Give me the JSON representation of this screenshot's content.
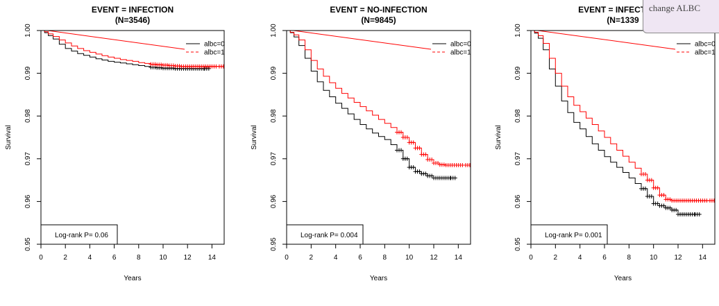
{
  "tooltip": {
    "text": "change ALBC"
  },
  "chart_data": [
    {
      "type": "line",
      "title": "EVENT = INFECTION",
      "subtitle": "(N=3546)",
      "xlabel": "Years",
      "ylabel": "Survival",
      "xlim": [
        0,
        15
      ],
      "ylim": [
        0.95,
        1.0
      ],
      "xticks": [
        0,
        2,
        4,
        6,
        8,
        10,
        12,
        14
      ],
      "yticks": [
        0.95,
        0.96,
        0.97,
        0.98,
        0.99,
        1.0
      ],
      "ytick_labels": [
        "0.95",
        "0.96",
        "0.97",
        "0.98",
        "0.99",
        "1.00"
      ],
      "grid": false,
      "legend": "top-right",
      "annotation": "Log-rank P= 0.06",
      "series": [
        {
          "name": "albc=0",
          "color": "#000000",
          "x": [
            0,
            0.3,
            0.6,
            1.0,
            1.5,
            2.0,
            2.5,
            3.0,
            3.5,
            4.0,
            4.5,
            5.0,
            5.5,
            6.0,
            6.5,
            7.0,
            7.5,
            8.0,
            8.5,
            9.0,
            9.5,
            10.0,
            10.5,
            11.0,
            11.5,
            12.0,
            12.5,
            13.0,
            13.4
          ],
          "y": [
            1.0,
            0.9995,
            0.9988,
            0.998,
            0.9968,
            0.9958,
            0.9952,
            0.9946,
            0.9942,
            0.9938,
            0.9934,
            0.9931,
            0.9928,
            0.9926,
            0.9924,
            0.9922,
            0.992,
            0.9918,
            0.9916,
            0.9914,
            0.9913,
            0.9912,
            0.9912,
            0.9911,
            0.9911,
            0.9911,
            0.9911,
            0.9911,
            0.9911
          ]
        },
        {
          "name": "albc=1",
          "color": "#ff0000",
          "x": [
            0,
            0.3,
            0.6,
            1.0,
            1.5,
            2.0,
            2.5,
            3.0,
            3.5,
            4.0,
            4.5,
            5.0,
            5.5,
            6.0,
            6.5,
            7.0,
            7.5,
            8.0,
            8.5,
            9.0,
            9.5,
            10.0,
            10.5,
            11.0,
            11.5,
            12.0,
            12.5,
            13.0,
            13.5,
            14.0,
            14.6
          ],
          "y": [
            1.0,
            0.9997,
            0.9992,
            0.9986,
            0.9978,
            0.9971,
            0.9964,
            0.9958,
            0.9953,
            0.9949,
            0.9945,
            0.9941,
            0.9938,
            0.9935,
            0.9932,
            0.993,
            0.9928,
            0.9925,
            0.9923,
            0.9921,
            0.992,
            0.9919,
            0.9918,
            0.9917,
            0.9916,
            0.9916,
            0.9916,
            0.9916,
            0.9916,
            0.9916,
            0.9916
          ]
        }
      ]
    },
    {
      "type": "line",
      "title": "EVENT = NO-INFECTION",
      "subtitle": "(N=9845)",
      "xlabel": "Years",
      "ylabel": "Survival",
      "xlim": [
        0,
        15
      ],
      "ylim": [
        0.95,
        1.0
      ],
      "xticks": [
        0,
        2,
        4,
        6,
        8,
        10,
        12,
        14
      ],
      "yticks": [
        0.95,
        0.96,
        0.97,
        0.98,
        0.99,
        1.0
      ],
      "ytick_labels": [
        "0.95",
        "0.96",
        "0.97",
        "0.98",
        "0.99",
        "1.00"
      ],
      "grid": false,
      "legend": "top-right",
      "annotation": "Log-rank P= 0.004",
      "series": [
        {
          "name": "albc=0",
          "color": "#000000",
          "x": [
            0,
            0.3,
            0.6,
            1.0,
            1.5,
            2.0,
            2.5,
            3.0,
            3.5,
            4.0,
            4.5,
            5.0,
            5.5,
            6.0,
            6.5,
            7.0,
            7.5,
            8.0,
            8.5,
            9.0,
            9.5,
            10.0,
            10.5,
            11.0,
            11.5,
            12.0,
            12.5,
            13.0,
            13.4
          ],
          "y": [
            1.0,
            0.9995,
            0.9985,
            0.9965,
            0.9935,
            0.9905,
            0.988,
            0.986,
            0.9845,
            0.983,
            0.9818,
            0.9805,
            0.9792,
            0.978,
            0.977,
            0.976,
            0.9752,
            0.9745,
            0.9733,
            0.972,
            0.97,
            0.968,
            0.967,
            0.9665,
            0.966,
            0.9655,
            0.9655,
            0.9655,
            0.9655
          ]
        },
        {
          "name": "albc=1",
          "color": "#ff0000",
          "x": [
            0,
            0.3,
            0.6,
            1.0,
            1.5,
            2.0,
            2.5,
            3.0,
            3.5,
            4.0,
            4.5,
            5.0,
            5.5,
            6.0,
            6.5,
            7.0,
            7.5,
            8.0,
            8.5,
            9.0,
            9.5,
            10.0,
            10.5,
            11.0,
            11.5,
            12.0,
            12.5,
            13.0,
            13.5,
            14.0,
            14.6
          ],
          "y": [
            1.0,
            0.9996,
            0.999,
            0.9978,
            0.9955,
            0.993,
            0.991,
            0.9893,
            0.9878,
            0.9865,
            0.9853,
            0.9842,
            0.9832,
            0.9822,
            0.9812,
            0.9802,
            0.9792,
            0.9783,
            0.9773,
            0.9762,
            0.975,
            0.9738,
            0.9725,
            0.971,
            0.9698,
            0.969,
            0.9686,
            0.9685,
            0.9685,
            0.9685,
            0.9685
          ]
        }
      ]
    },
    {
      "type": "line",
      "title": "EVENT = INFECTION +",
      "subtitle": "(N=1339",
      "xlabel": "Years",
      "ylabel": "Survival",
      "xlim": [
        0,
        15
      ],
      "ylim": [
        0.95,
        1.0
      ],
      "xticks": [
        0,
        2,
        4,
        6,
        8,
        10,
        12,
        14
      ],
      "yticks": [
        0.95,
        0.96,
        0.97,
        0.98,
        0.99,
        1.0
      ],
      "ytick_labels": [
        "0.95",
        "0.96",
        "0.97",
        "0.98",
        "0.99",
        "1.00"
      ],
      "grid": false,
      "legend": "top-right",
      "annotation": "Log-rank P= 0.001",
      "series": [
        {
          "name": "albc=0",
          "color": "#000000",
          "x": [
            0,
            0.3,
            0.6,
            1.0,
            1.5,
            2.0,
            2.5,
            3.0,
            3.5,
            4.0,
            4.5,
            5.0,
            5.5,
            6.0,
            6.5,
            7.0,
            7.5,
            8.0,
            8.5,
            9.0,
            9.5,
            10.0,
            10.5,
            11.0,
            11.5,
            12.0,
            12.5,
            13.0,
            13.4
          ],
          "y": [
            1.0,
            0.9994,
            0.9982,
            0.9955,
            0.991,
            0.987,
            0.9835,
            0.9808,
            0.9785,
            0.977,
            0.9752,
            0.9735,
            0.972,
            0.9705,
            0.9692,
            0.968,
            0.9668,
            0.9655,
            0.9642,
            0.963,
            0.9612,
            0.9595,
            0.959,
            0.9585,
            0.958,
            0.957,
            0.957,
            0.957,
            0.957
          ]
        },
        {
          "name": "albc=1",
          "color": "#ff0000",
          "x": [
            0,
            0.3,
            0.6,
            1.0,
            1.5,
            2.0,
            2.5,
            3.0,
            3.5,
            4.0,
            4.5,
            5.0,
            5.5,
            6.0,
            6.5,
            7.0,
            7.5,
            8.0,
            8.5,
            9.0,
            9.5,
            10.0,
            10.5,
            11.0,
            11.5,
            12.0,
            12.5,
            13.0,
            13.5,
            14.0,
            14.6
          ],
          "y": [
            1.0,
            0.9996,
            0.9988,
            0.997,
            0.9935,
            0.99,
            0.987,
            0.9845,
            0.9825,
            0.981,
            0.9795,
            0.978,
            0.9765,
            0.975,
            0.9735,
            0.972,
            0.9706,
            0.9692,
            0.9678,
            0.9664,
            0.965,
            0.9632,
            0.9615,
            0.9605,
            0.9602,
            0.9602,
            0.9602,
            0.9602,
            0.9602,
            0.9602,
            0.9602
          ]
        }
      ]
    }
  ]
}
